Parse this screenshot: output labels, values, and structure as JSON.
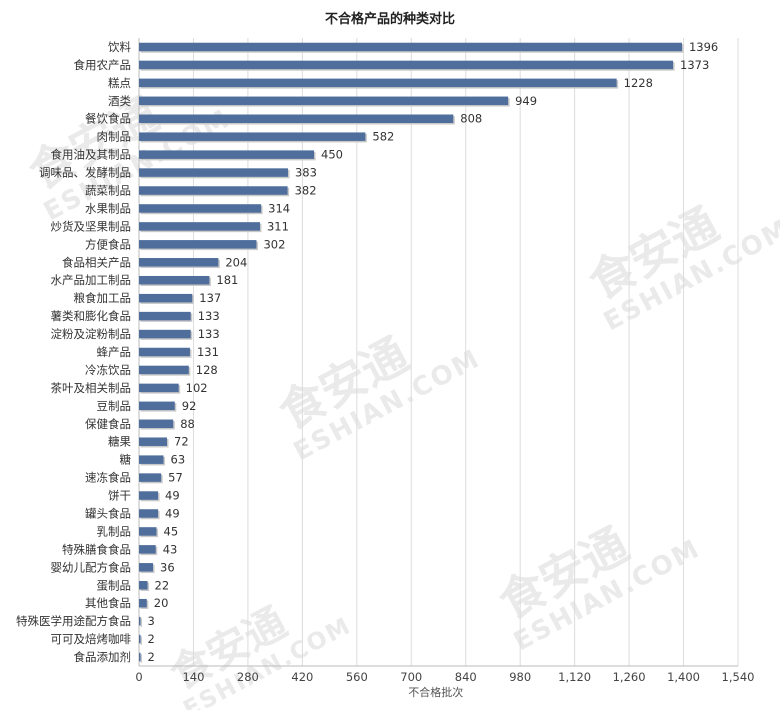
{
  "chart_data": {
    "type": "bar",
    "orientation": "horizontal",
    "title": "不合格产品的种类对比",
    "xlabel": "不合格批次",
    "ylabel": "",
    "xlim": [
      0,
      1540
    ],
    "xticks": [
      0,
      140,
      280,
      420,
      560,
      700,
      840,
      980,
      1120,
      1260,
      1400,
      1540
    ],
    "xtick_labels": [
      "0",
      "140",
      "280",
      "420",
      "560",
      "700",
      "840",
      "980",
      "1,120",
      "1,260",
      "1,400",
      "1,540"
    ],
    "grid": true,
    "bar_color": "#4f6e9c",
    "categories": [
      "饮料",
      "食用农产品",
      "糕点",
      "酒类",
      "餐饮食品",
      "肉制品",
      "食用油及其制品",
      "调味品、发酵制品",
      "蔬菜制品",
      "水果制品",
      "炒货及坚果制品",
      "方便食品",
      "食品相关产品",
      "水产品加工制品",
      "粮食加工品",
      "薯类和膨化食品",
      "淀粉及淀粉制品",
      "蜂产品",
      "冷冻饮品",
      "茶叶及相关制品",
      "豆制品",
      "保健食品",
      "糖果",
      "糖",
      "速冻食品",
      "饼干",
      "罐头食品",
      "乳制品",
      "特殊膳食食品",
      "婴幼儿配方食品",
      "蛋制品",
      "其他食品",
      "特殊医学用途配方食品",
      "可可及焙烤咖啡",
      "食品添加剂"
    ],
    "values": [
      1396,
      1373,
      1228,
      949,
      808,
      582,
      450,
      383,
      382,
      314,
      311,
      302,
      204,
      181,
      137,
      133,
      133,
      131,
      128,
      102,
      92,
      88,
      72,
      63,
      57,
      49,
      49,
      45,
      43,
      36,
      22,
      20,
      3,
      2,
      2
    ]
  },
  "watermark": {
    "logo_text": "食安通",
    "domain_text": "ESHIAN.COM",
    "color": "#d9d9d9"
  }
}
